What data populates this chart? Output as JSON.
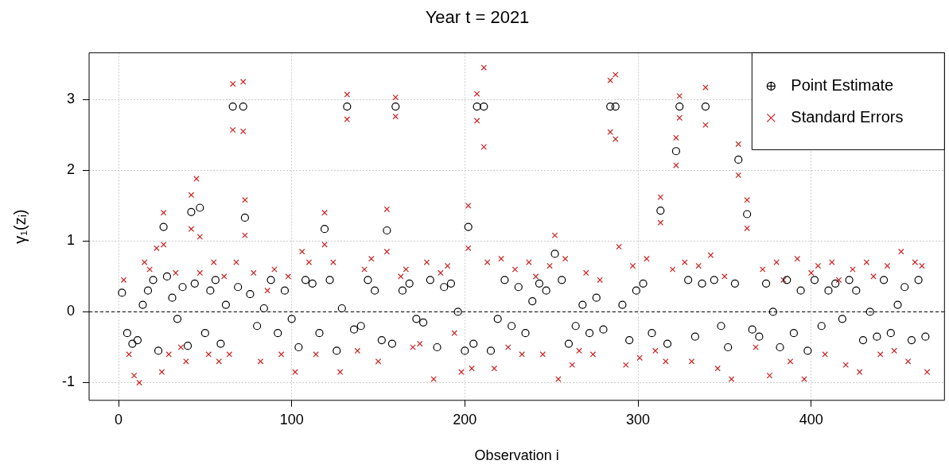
{
  "chart_data": {
    "type": "scatter",
    "title": "Year t = 2021",
    "xlabel": "Observation i",
    "ylabel": "γ₁(zᵢ)",
    "xlim": [
      -17,
      477
    ],
    "ylim": [
      -1.25,
      3.66
    ],
    "xticks": [
      0,
      100,
      200,
      300,
      400
    ],
    "yticks": [
      -1,
      0,
      1,
      2,
      3
    ],
    "grid": true,
    "legend": "top right",
    "ref_lines": [
      {
        "axis": "y",
        "value": 0,
        "line_style": "dashed",
        "color": "#000000"
      }
    ],
    "series": [
      {
        "name": "Point Estimate",
        "color": "#000000",
        "marker": "circle",
        "x": [
          2,
          5,
          8,
          11,
          14,
          17,
          20,
          23,
          26,
          28,
          31,
          34,
          37,
          40,
          42,
          44,
          47,
          50,
          53,
          56,
          59,
          62,
          66,
          69,
          72,
          73,
          76,
          80,
          84,
          88,
          92,
          96,
          100,
          104,
          108,
          112,
          116,
          119,
          122,
          126,
          129,
          132,
          136,
          140,
          144,
          148,
          152,
          155,
          158,
          160,
          164,
          168,
          172,
          176,
          180,
          184,
          188,
          192,
          196,
          200,
          202,
          205,
          207,
          211,
          215,
          219,
          223,
          227,
          231,
          235,
          239,
          243,
          247,
          252,
          256,
          260,
          264,
          268,
          272,
          276,
          280,
          284,
          287,
          291,
          295,
          299,
          303,
          308,
          313,
          317,
          322,
          324,
          329,
          333,
          337,
          339,
          344,
          348,
          352,
          356,
          358,
          363,
          366,
          370,
          374,
          378,
          382,
          386,
          390,
          394,
          398,
          402,
          406,
          410,
          414,
          418,
          422,
          426,
          430,
          434,
          438,
          442,
          446,
          450,
          454,
          458,
          462,
          466
        ],
        "values": [
          0.27,
          -0.3,
          -0.45,
          -0.4,
          0.1,
          0.3,
          0.45,
          -0.55,
          1.2,
          0.5,
          0.2,
          -0.1,
          0.35,
          -0.48,
          1.41,
          0.4,
          1.47,
          -0.3,
          0.3,
          0.45,
          -0.45,
          0.1,
          2.9,
          0.35,
          2.9,
          1.33,
          0.25,
          -0.2,
          0.05,
          0.45,
          -0.3,
          0.3,
          -0.1,
          -0.5,
          0.45,
          0.4,
          -0.3,
          1.17,
          0.45,
          -0.55,
          0.05,
          2.9,
          -0.25,
          -0.2,
          0.45,
          0.3,
          -0.4,
          1.15,
          -0.45,
          2.9,
          0.3,
          0.4,
          -0.1,
          -0.15,
          0.45,
          -0.5,
          0.35,
          0.4,
          0.0,
          -0.55,
          1.2,
          -0.45,
          2.9,
          2.9,
          -0.55,
          -0.1,
          0.45,
          -0.2,
          0.35,
          -0.3,
          0.15,
          0.4,
          0.3,
          0.82,
          0.45,
          -0.45,
          -0.2,
          0.1,
          -0.3,
          0.2,
          -0.25,
          2.9,
          2.9,
          0.1,
          -0.4,
          0.3,
          0.4,
          -0.3,
          1.43,
          -0.45,
          2.27,
          2.9,
          0.45,
          -0.35,
          0.4,
          2.9,
          0.45,
          -0.2,
          -0.5,
          0.4,
          2.15,
          1.38,
          -0.25,
          -0.35,
          0.4,
          0.0,
          -0.5,
          0.45,
          -0.3,
          0.3,
          -0.55,
          0.45,
          -0.2,
          0.3,
          0.4,
          -0.1,
          0.45,
          0.3,
          -0.4,
          0.0,
          -0.35,
          0.45,
          -0.3,
          0.1,
          0.35,
          -0.4,
          0.45,
          -0.35
        ]
      },
      {
        "name": "Standard Errors",
        "color": "#cc2222",
        "marker": "cross",
        "x": [
          3,
          6,
          9,
          12,
          15,
          18,
          22,
          25,
          26,
          26,
          29,
          33,
          36,
          39,
          42,
          42,
          45,
          47,
          47,
          52,
          55,
          58,
          61,
          64,
          66,
          66,
          68,
          72,
          72,
          73,
          73,
          78,
          82,
          86,
          90,
          94,
          98,
          102,
          106,
          110,
          114,
          119,
          119,
          124,
          128,
          132,
          132,
          138,
          142,
          146,
          150,
          155,
          155,
          160,
          160,
          163,
          166,
          170,
          174,
          178,
          182,
          186,
          190,
          194,
          198,
          202,
          202,
          204,
          207,
          207,
          211,
          211,
          213,
          217,
          221,
          225,
          229,
          233,
          237,
          241,
          245,
          249,
          252,
          254,
          258,
          262,
          266,
          270,
          274,
          278,
          284,
          284,
          287,
          287,
          289,
          293,
          297,
          301,
          305,
          310,
          313,
          313,
          316,
          320,
          322,
          322,
          324,
          324,
          327,
          331,
          335,
          339,
          339,
          342,
          346,
          350,
          354,
          358,
          358,
          363,
          363,
          368,
          372,
          376,
          380,
          384,
          388,
          392,
          396,
          400,
          404,
          408,
          412,
          416,
          420,
          424,
          428,
          432,
          436,
          440,
          444,
          448,
          452,
          456,
          460,
          464,
          467
        ],
        "values": [
          0.45,
          -0.6,
          -0.9,
          -1.0,
          0.7,
          0.6,
          0.9,
          -0.85,
          1.4,
          0.95,
          -0.6,
          0.55,
          -0.5,
          -0.7,
          1.65,
          1.17,
          1.88,
          1.06,
          0.55,
          -0.6,
          0.7,
          -0.7,
          0.5,
          -0.6,
          3.22,
          2.57,
          0.7,
          3.25,
          2.55,
          1.58,
          1.08,
          0.55,
          -0.7,
          0.3,
          0.6,
          -0.6,
          0.5,
          -0.85,
          0.85,
          0.7,
          -0.6,
          1.4,
          0.95,
          0.7,
          -0.85,
          3.07,
          2.72,
          -0.55,
          0.6,
          0.75,
          -0.7,
          1.45,
          0.85,
          3.03,
          2.76,
          0.5,
          0.6,
          -0.5,
          -0.45,
          0.7,
          -0.95,
          0.55,
          0.65,
          -0.3,
          -0.85,
          1.5,
          0.9,
          -0.8,
          3.08,
          2.7,
          3.45,
          2.33,
          0.7,
          -0.8,
          0.75,
          -0.5,
          0.6,
          -0.6,
          0.7,
          0.5,
          -0.6,
          0.65,
          1.08,
          -0.95,
          0.75,
          -0.75,
          -0.55,
          0.55,
          -0.6,
          0.45,
          3.27,
          2.54,
          3.35,
          2.44,
          0.92,
          -0.75,
          0.65,
          -0.65,
          0.75,
          -0.55,
          1.62,
          1.26,
          -0.7,
          0.6,
          2.46,
          2.07,
          3.05,
          2.74,
          0.7,
          -0.7,
          0.65,
          3.17,
          2.64,
          0.8,
          -0.8,
          0.5,
          -0.95,
          2.37,
          1.93,
          1.58,
          1.18,
          -0.5,
          0.6,
          -0.9,
          0.7,
          0.45,
          -0.7,
          0.75,
          -0.95,
          0.55,
          0.65,
          -0.6,
          0.7,
          0.45,
          -0.75,
          0.6,
          -0.85,
          0.7,
          0.5,
          -0.6,
          0.65,
          -0.55,
          0.85,
          -0.7,
          0.7,
          0.65,
          -0.85
        ]
      }
    ]
  }
}
